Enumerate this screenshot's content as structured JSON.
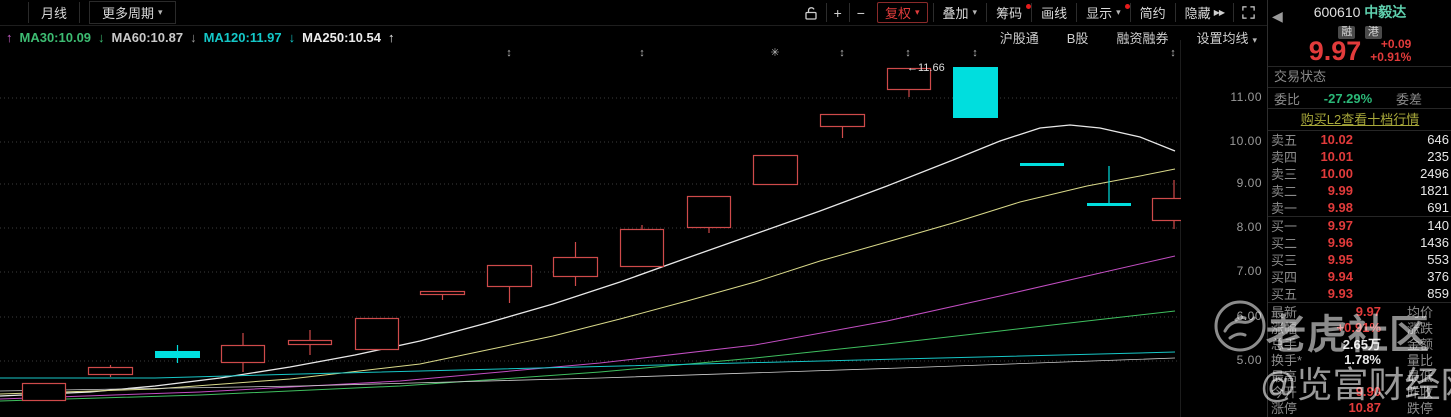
{
  "toolbar": {
    "left": [
      {
        "label": "月线"
      },
      {
        "label": "更多周期",
        "caret": "▾"
      }
    ],
    "right": [
      {
        "type": "icon",
        "name": "lock-open",
        "key": "lock"
      },
      {
        "type": "icon",
        "name": "plus",
        "glyph": "+",
        "key": "zoom-in"
      },
      {
        "type": "icon",
        "name": "minus",
        "glyph": "−",
        "key": "zoom-out"
      },
      {
        "label": "复权",
        "caret": "▾",
        "accent": true,
        "key": "adjust-price"
      },
      {
        "label": "叠加",
        "caret": "▾",
        "key": "overlay"
      },
      {
        "label": "筹码",
        "dot": true,
        "key": "chip-distribution"
      },
      {
        "label": "画线",
        "key": "draw-line"
      },
      {
        "label": "显示",
        "caret": "▾",
        "dot": true,
        "key": "display"
      },
      {
        "label": "简约",
        "key": "simple-mode"
      },
      {
        "label": "隐藏",
        "suffix": "▶▶",
        "key": "hide-panel"
      },
      {
        "type": "icon",
        "name": "fullscreen",
        "key": "fullscreen"
      }
    ]
  },
  "ma_legend": [
    {
      "arrow": "↑",
      "arrow_color": "#c95fc9"
    },
    {
      "text": "MA30:10.09",
      "color": "#3dbc72"
    },
    {
      "arrow": "↓",
      "arrow_color": "#3dbc72"
    },
    {
      "text": "MA60:10.87",
      "color": "#c9c9c9"
    },
    {
      "arrow": "↓",
      "arrow_color": "#9b9b9b"
    },
    {
      "text": "MA120:11.97",
      "color": "#14c8c8"
    },
    {
      "arrow": "↓",
      "arrow_color": "#14c8c8"
    },
    {
      "text": "MA250:10.54",
      "color": "#ececec"
    },
    {
      "arrow": "↑",
      "arrow_color": "#ececec"
    }
  ],
  "sub_toolbar": {
    "links": [
      "沪股通",
      "B股",
      "融资融券"
    ],
    "ma_setting": {
      "label": "设置均线",
      "caret": "▾"
    }
  },
  "chart_data": {
    "type": "candlestick",
    "period": "月线",
    "grid": true,
    "ylim": [
      3.7,
      12.1
    ],
    "axis": {
      "labels": [
        {
          "y": 98,
          "text": "11.00"
        },
        {
          "y": 142,
          "text": "10.00"
        },
        {
          "y": 184,
          "text": "9.00"
        },
        {
          "y": 228,
          "text": "8.00"
        },
        {
          "y": 272,
          "text": "7.00"
        },
        {
          "y": 317,
          "text": "6.00"
        },
        {
          "y": 361,
          "text": "5.00"
        }
      ]
    },
    "annotation": {
      "text": "←11.66",
      "x": 907,
      "y": 71,
      "meaning": "high price marker"
    },
    "event_markers": {
      "y": 56,
      "items": [
        {
          "x": 509,
          "glyph": "↕"
        },
        {
          "x": 642,
          "glyph": "↕"
        },
        {
          "x": 775,
          "glyph": "✳"
        },
        {
          "x": 842,
          "glyph": "↕"
        },
        {
          "x": 908,
          "glyph": "↕"
        },
        {
          "x": 975,
          "glyph": "↕"
        },
        {
          "x": 1173,
          "glyph": "↕"
        }
      ]
    },
    "candles": [
      {
        "x": 22,
        "w": 44,
        "bt": 383,
        "bb": 401,
        "wt": 383,
        "wb": 401,
        "dir": "up",
        "o": 4.09,
        "h": 4.5,
        "l": 4.09,
        "c": 4.5
      },
      {
        "x": 88,
        "w": 45,
        "bt": 367,
        "bb": 375,
        "wt": 365,
        "wb": 377,
        "dir": "up",
        "o": 4.68,
        "h": 4.9,
        "l": 4.63,
        "c": 4.86
      },
      {
        "x": 155,
        "w": 45,
        "bt": 351,
        "bb": 358,
        "wt": 345,
        "wb": 363,
        "dir": "down",
        "o": 5.23,
        "h": 5.36,
        "l": 4.95,
        "c": 5.07
      },
      {
        "x": 221,
        "w": 44,
        "bt": 345,
        "bb": 363,
        "wt": 333,
        "wb": 372,
        "dir": "up",
        "o": 4.95,
        "h": 5.64,
        "l": 4.75,
        "c": 5.36
      },
      {
        "x": 288,
        "w": 44,
        "bt": 340,
        "bb": 345,
        "wt": 330,
        "wb": 355,
        "dir": "up",
        "o": 5.36,
        "h": 5.71,
        "l": 5.13,
        "c": 5.47
      },
      {
        "x": 355,
        "w": 44,
        "bt": 318,
        "bb": 350,
        "wt": 318,
        "wb": 350,
        "dir": "up",
        "o": 5.25,
        "h": 5.98,
        "l": 5.25,
        "c": 5.98
      },
      {
        "x": 420,
        "w": 45,
        "bt": 291,
        "bb": 295,
        "wt": 291,
        "wb": 300,
        "dir": "up",
        "o": 6.5,
        "h": 6.6,
        "l": 6.39,
        "c": 6.6
      },
      {
        "x": 487,
        "w": 45,
        "bt": 265,
        "bb": 287,
        "wt": 265,
        "wb": 303,
        "dir": "up",
        "o": 6.69,
        "h": 7.19,
        "l": 6.32,
        "c": 7.19
      },
      {
        "x": 553,
        "w": 45,
        "bt": 257,
        "bb": 277,
        "wt": 242,
        "wb": 286,
        "dir": "up",
        "o": 6.92,
        "h": 7.71,
        "l": 6.71,
        "c": 7.37
      },
      {
        "x": 620,
        "w": 44,
        "bt": 229,
        "bb": 267,
        "wt": 225,
        "wb": 267,
        "dir": "up",
        "o": 7.14,
        "h": 8.1,
        "l": 7.14,
        "c": 8.01
      },
      {
        "x": 687,
        "w": 44,
        "bt": 196,
        "bb": 228,
        "wt": 196,
        "wb": 233,
        "dir": "up",
        "o": 8.03,
        "h": 8.76,
        "l": 7.92,
        "c": 8.76
      },
      {
        "x": 753,
        "w": 45,
        "bt": 155,
        "bb": 185,
        "wt": 155,
        "wb": 185,
        "dir": "up",
        "o": 9.01,
        "h": 9.7,
        "l": 9.01,
        "c": 9.7
      },
      {
        "x": 820,
        "w": 45,
        "bt": 114,
        "bb": 127,
        "wt": 114,
        "wb": 138,
        "dir": "up",
        "o": 10.34,
        "h": 10.63,
        "l": 10.09,
        "c": 10.63
      },
      {
        "x": 887,
        "w": 44,
        "bt": 68,
        "bb": 90,
        "wt": 68,
        "wb": 97,
        "dir": "up",
        "o": 11.18,
        "h": 11.66,
        "l": 11.02,
        "c": 11.66
      },
      {
        "x": 953,
        "w": 45,
        "bt": 67,
        "bb": 118,
        "wt": 67,
        "wb": 118,
        "dir": "down",
        "o": 11.69,
        "h": 11.69,
        "l": 10.54,
        "c": 10.54
      },
      {
        "x": 1020,
        "w": 44,
        "bt": 163,
        "bb": 166,
        "wt": 163,
        "wb": 166,
        "dir": "down",
        "o": 9.52,
        "h": 9.52,
        "l": 9.45,
        "c": 9.48
      },
      {
        "x": 1087,
        "w": 44,
        "bt": 203,
        "bb": 206,
        "wt": 166,
        "wb": 206,
        "dir": "down",
        "o": 8.65,
        "h": 9.45,
        "l": 8.58,
        "c": 8.6
      },
      {
        "x": 1152,
        "w": 44,
        "bt": 198,
        "bb": 221,
        "wt": 180,
        "wb": 229,
        "dir": "up",
        "o": 8.19,
        "h": 9.13,
        "l": 8.01,
        "c": 8.72
      }
    ],
    "ma_lines": [
      {
        "name": "ma-white",
        "color": "#e8e8e8",
        "width": 1.3,
        "points": [
          [
            0,
            396
          ],
          [
            90,
            392
          ],
          [
            155,
            386
          ],
          [
            220,
            378
          ],
          [
            290,
            367
          ],
          [
            355,
            355
          ],
          [
            420,
            341
          ],
          [
            487,
            323
          ],
          [
            553,
            304
          ],
          [
            620,
            282
          ],
          [
            687,
            258
          ],
          [
            755,
            234
          ],
          [
            820,
            211
          ],
          [
            887,
            186
          ],
          [
            953,
            160
          ],
          [
            1000,
            141
          ],
          [
            1040,
            128
          ],
          [
            1070,
            125
          ],
          [
            1100,
            128
          ],
          [
            1140,
            137
          ],
          [
            1175,
            151
          ]
        ]
      },
      {
        "name": "ma-yellow",
        "color": "#d9d98a",
        "width": 1,
        "points": [
          [
            0,
            394
          ],
          [
            155,
            389
          ],
          [
            290,
            379
          ],
          [
            420,
            364
          ],
          [
            487,
            350
          ],
          [
            553,
            336
          ],
          [
            620,
            319
          ],
          [
            687,
            301
          ],
          [
            755,
            282
          ],
          [
            820,
            261
          ],
          [
            887,
            242
          ],
          [
            953,
            223
          ],
          [
            1020,
            202
          ],
          [
            1087,
            186
          ],
          [
            1140,
            176
          ],
          [
            1175,
            169
          ]
        ]
      },
      {
        "name": "ma-magenta",
        "color": "#c24ec2",
        "width": 1,
        "points": [
          [
            0,
            399
          ],
          [
            200,
            392
          ],
          [
            400,
            381
          ],
          [
            600,
            363
          ],
          [
            755,
            345
          ],
          [
            887,
            321
          ],
          [
            1000,
            296
          ],
          [
            1087,
            276
          ],
          [
            1175,
            256
          ]
        ]
      },
      {
        "name": "ma-green",
        "color": "#3fbf5f",
        "width": 1,
        "points": [
          [
            0,
            401
          ],
          [
            200,
            395
          ],
          [
            400,
            386
          ],
          [
            600,
            372
          ],
          [
            755,
            358
          ],
          [
            887,
            344
          ],
          [
            1000,
            331
          ],
          [
            1087,
            321
          ],
          [
            1175,
            311
          ]
        ]
      },
      {
        "name": "ma-cyan",
        "color": "#17c7c7",
        "width": 1,
        "points": [
          [
            0,
            378
          ],
          [
            155,
            378
          ],
          [
            300,
            374
          ],
          [
            500,
            369
          ],
          [
            700,
            364
          ],
          [
            900,
            359
          ],
          [
            1100,
            354
          ],
          [
            1175,
            352
          ]
        ]
      },
      {
        "name": "ma-white-thin",
        "color": "#cfcfcf",
        "width": 0.8,
        "points": [
          [
            0,
            391
          ],
          [
            300,
            386
          ],
          [
            600,
            378
          ],
          [
            900,
            368
          ],
          [
            1175,
            358
          ]
        ]
      }
    ],
    "colors": {
      "up": "#cf4a4a",
      "down": "#00dede",
      "grid": "#3c3c3c"
    }
  },
  "quote_panel": {
    "back_icon": "◀",
    "code": "600610",
    "name": "中毅达",
    "tags": [
      "融",
      "港"
    ],
    "price": "9.97",
    "change": "+0.09",
    "change_pct": "+0.91%",
    "trade_status_label": "交易状态",
    "weibi_label": "委比",
    "weibi_value": "-27.29%",
    "weicha_label": "委差",
    "l2_link": "购买L2查看十档行情",
    "asks": [
      {
        "label": "卖五",
        "price": "10.02",
        "vol": "646"
      },
      {
        "label": "卖四",
        "price": "10.01",
        "vol": "235"
      },
      {
        "label": "卖三",
        "price": "10.00",
        "vol": "2496"
      },
      {
        "label": "卖二",
        "price": "9.99",
        "vol": "1821"
      },
      {
        "label": "卖一",
        "price": "9.98",
        "vol": "691"
      }
    ],
    "bids": [
      {
        "label": "买一",
        "price": "9.97",
        "vol": "140"
      },
      {
        "label": "买二",
        "price": "9.96",
        "vol": "1436"
      },
      {
        "label": "买三",
        "price": "9.95",
        "vol": "553"
      },
      {
        "label": "买四",
        "price": "9.94",
        "vol": "376"
      },
      {
        "label": "买五",
        "price": "9.93",
        "vol": "859"
      }
    ],
    "details": [
      {
        "label": "最新",
        "value": "9.97",
        "vclass": "red",
        "label2": "均价"
      },
      {
        "label": "涨幅",
        "value": "+0.91%",
        "vclass": "red",
        "label2": "涨跌"
      },
      {
        "label": "总手",
        "value": "2.65万",
        "vclass": "white",
        "label2": "金额"
      },
      {
        "label": "换手*",
        "value": "1.78%",
        "vclass": "white",
        "label2": "量比"
      },
      {
        "label": "最高",
        "value": "",
        "vclass": "red",
        "label2": "最低"
      },
      {
        "label": "今开",
        "value": "9.90",
        "vclass": "red",
        "label2": "昨收"
      },
      {
        "label": "涨停",
        "value": "10.87",
        "vclass": "red",
        "label2": "跌停"
      }
    ]
  },
  "watermark": {
    "community": "老虎社区",
    "site": "@览富财经网"
  }
}
